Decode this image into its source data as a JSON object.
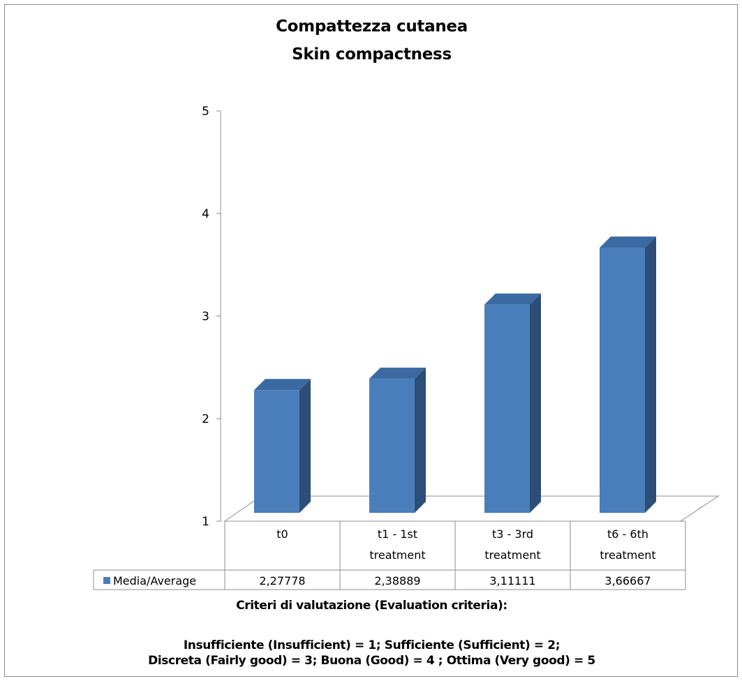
{
  "chart_data": {
    "type": "bar",
    "title": "Compattezza cutanea",
    "subtitle": "Skin compactness",
    "categories": [
      [
        "t0"
      ],
      [
        "t1 - 1st",
        "treatment"
      ],
      [
        "t3 -  3rd",
        "treatment"
      ],
      [
        "t6 -   6th",
        "treatment"
      ]
    ],
    "series": [
      {
        "name": "Media/Average",
        "values": [
          2.27778,
          2.38889,
          3.11111,
          3.66667
        ],
        "labels": [
          "2,27778",
          "2,38889",
          "3,11111",
          "3,66667"
        ]
      }
    ],
    "ylim": [
      1,
      5
    ],
    "yticks": [
      "1",
      "2",
      "3",
      "4",
      "5"
    ],
    "grid": false,
    "legend": "data-table",
    "colors": {
      "bar_front": "#4a7ebb",
      "bar_side": "#2c4e77",
      "bar_top": "#3b6aa3",
      "axis": "#8c8c8c"
    }
  },
  "notes": {
    "heading": "Criteri di valutazione (Evaluation criteria):",
    "line1": "Insufficiente (Insufficient) = 1;  Sufficiente (Sufficient) = 2;",
    "line2": "Discreta (Fairly good) = 3;  Buona (Good) = 4 ; Ottima (Very good) = 5"
  }
}
